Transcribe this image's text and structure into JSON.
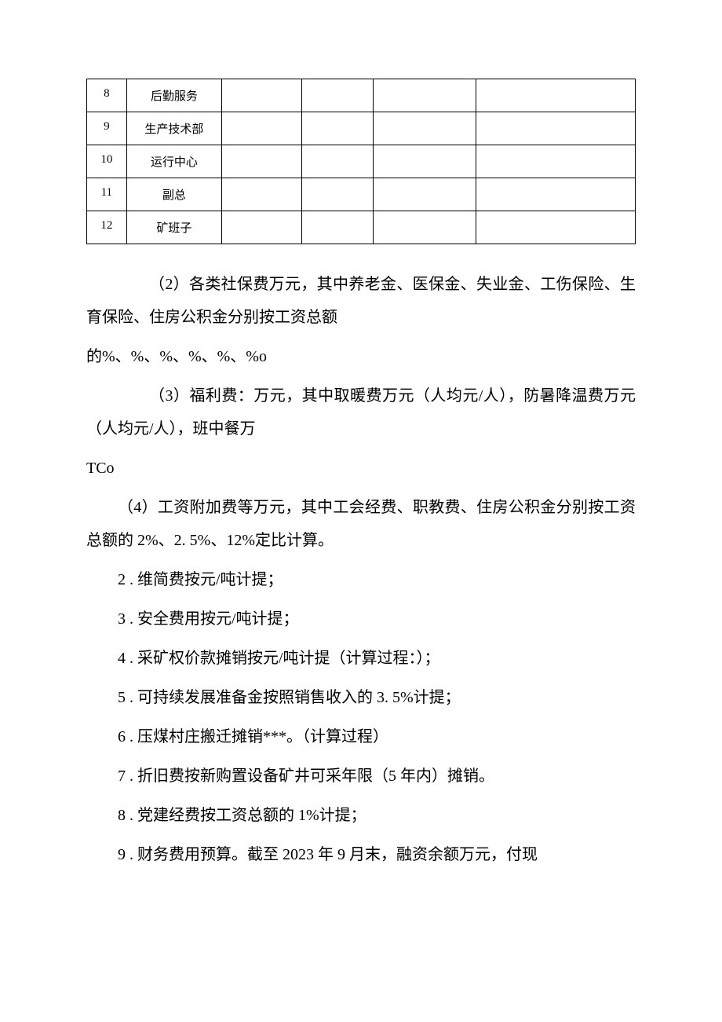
{
  "table": {
    "rows": [
      {
        "idx": "8",
        "name": "后勤服务"
      },
      {
        "idx": "9",
        "name": "生产技术部"
      },
      {
        "idx": "10",
        "name": "运行中心"
      },
      {
        "idx": "11",
        "name": "副总"
      },
      {
        "idx": "12",
        "name": "矿班子"
      }
    ]
  },
  "para_2_a": "（2）各类社保费万元，其中养老金、医保金、失业金、工伤保险、生育保险、住房公积金分别按工资总额",
  "para_2_b": "的%、%、%、%、%、%o",
  "para_3_a": "（3）福利费：万元，其中取暖费万元（人均元/人），防暑降温费万元（人均元/人），班中餐万",
  "para_3_b": "TCo",
  "para_4": "（4）工资附加费等万元，其中工会经费、职教费、住房公积金分别按工资总额的 2%、2. 5%、12%定比计算。",
  "item_2": "2 . 维简费按元/吨计提；",
  "item_3": "3 . 安全费用按元/吨计提；",
  "item_4": "4 . 采矿权价款摊销按元/吨计提（计算过程：）；",
  "item_5": "5 . 可持续发展准备金按照销售收入的 3. 5%计提；",
  "item_6": "6 . 压煤村庄搬迁摊销***。（计算过程）",
  "item_7": "7 . 折旧费按新购置设备矿井可采年限（5 年内）摊销。",
  "item_8": "8 . 党建经费按工资总额的 1%计提；",
  "item_9": "9 . 财务费用预算。截至 2023 年 9 月末，融资余额万元，付现"
}
